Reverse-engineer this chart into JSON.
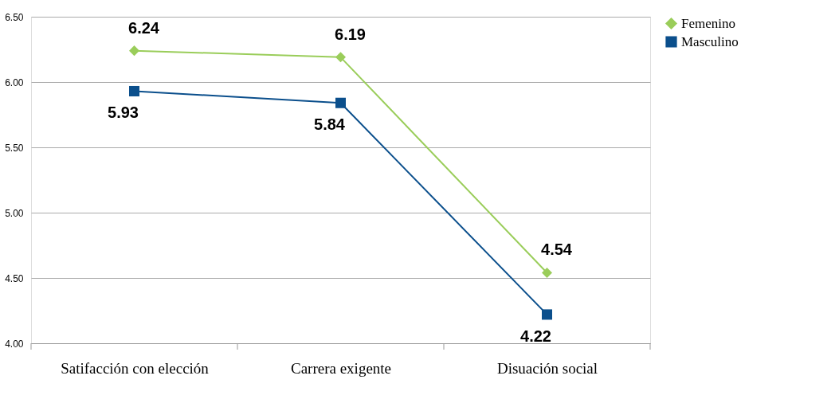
{
  "chart_data": {
    "type": "line",
    "categories": [
      "Satifacción con elección",
      "Carrera exigente",
      "Disuación social"
    ],
    "series": [
      {
        "name": "Femenino",
        "color": "#9acd5a",
        "marker": "diamond",
        "values": [
          6.24,
          6.19,
          4.54
        ]
      },
      {
        "name": "Masculino",
        "color": "#0b4f8c",
        "marker": "square",
        "values": [
          5.93,
          5.84,
          4.22
        ]
      }
    ],
    "ylim": [
      4.0,
      6.5
    ],
    "yticks": [
      {
        "value": 4.0,
        "label": "4.00"
      },
      {
        "value": 4.5,
        "label": "4.50"
      },
      {
        "value": 5.0,
        "label": "5.00"
      },
      {
        "value": 5.5,
        "label": "5.50"
      },
      {
        "value": 6.0,
        "label": "6.00"
      },
      {
        "value": 6.5,
        "label": "6.50"
      }
    ],
    "grid": "y",
    "legend": "right",
    "data_labels": true
  }
}
